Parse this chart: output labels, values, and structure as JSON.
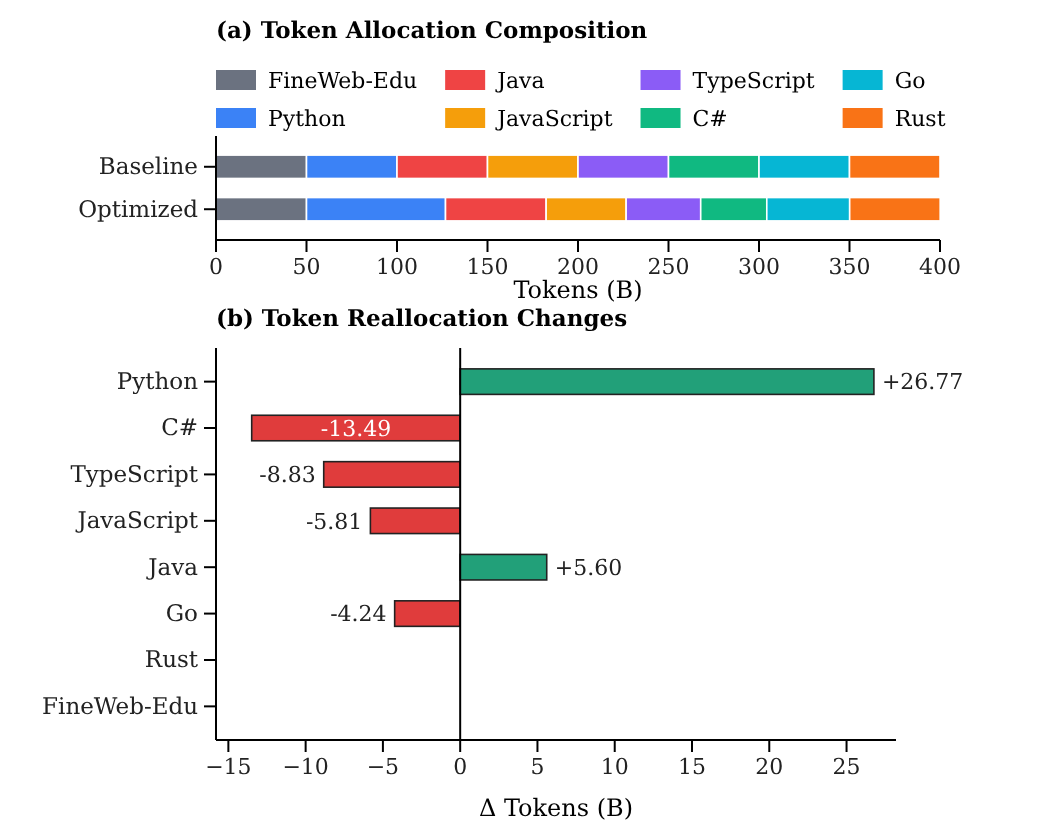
{
  "chart_data": [
    {
      "type": "bar",
      "title": "(a) Token Allocation Composition",
      "xlabel": "Tokens (B)",
      "orientation": "horizontal",
      "stacked": true,
      "categories": [
        "Baseline",
        "Optimized"
      ],
      "xlim": [
        0,
        400
      ],
      "xticks": [
        0,
        50,
        100,
        150,
        200,
        250,
        300,
        350,
        400
      ],
      "legend": "top",
      "grid": false,
      "series": [
        {
          "name": "FineWeb-Edu",
          "color": "#6b7280",
          "values": [
            50,
            50
          ]
        },
        {
          "name": "Python",
          "color": "#3b82f6",
          "values": [
            50,
            76.8
          ]
        },
        {
          "name": "Java",
          "color": "#ef4444",
          "values": [
            50,
            55.6
          ]
        },
        {
          "name": "JavaScript",
          "color": "#f59e0b",
          "values": [
            50,
            44.2
          ]
        },
        {
          "name": "TypeScript",
          "color": "#8b5cf6",
          "values": [
            50,
            41.2
          ]
        },
        {
          "name": "C#",
          "color": "#10b981",
          "values": [
            50,
            36.5
          ]
        },
        {
          "name": "Go",
          "color": "#06b6d4",
          "values": [
            50,
            45.8
          ]
        },
        {
          "name": "Rust",
          "color": "#f97316",
          "values": [
            50,
            50
          ]
        }
      ]
    },
    {
      "type": "bar",
      "title": "(b) Token Reallocation Changes",
      "xlabel": "Δ Tokens (B)",
      "orientation": "horizontal",
      "categories": [
        "Python",
        "C#",
        "TypeScript",
        "JavaScript",
        "Java",
        "Go",
        "Rust",
        "FineWeb-Edu"
      ],
      "xlim": [
        -15.8,
        28.2
      ],
      "xticks": [
        {
          "value": -15,
          "label": "−15"
        },
        {
          "value": -10,
          "label": "−10"
        },
        {
          "value": -5,
          "label": "−5"
        },
        0,
        5,
        10,
        15,
        20,
        25
      ],
      "grid": false,
      "values": [
        26.77,
        -13.49,
        -8.83,
        -5.81,
        5.6,
        -4.24,
        0,
        0
      ],
      "colors": [
        "#22a079",
        "#e03c3c",
        "#e03c3c",
        "#e03c3c",
        "#22a079",
        "#e03c3c",
        "#22a079",
        "#22a079"
      ],
      "value_labels": [
        "+26.77",
        "-13.49",
        "-8.83",
        "-5.81",
        "+5.60",
        "-4.24",
        null,
        null
      ],
      "ref_lines": [
        {
          "axis": "x",
          "value": 0,
          "color": "#000000"
        }
      ]
    }
  ]
}
